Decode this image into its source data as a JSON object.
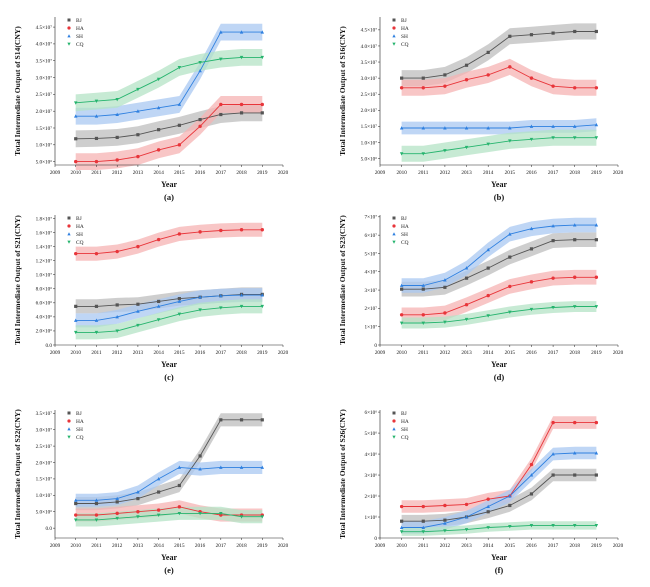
{
  "figure": {
    "colors": {
      "BJ": "#555555",
      "HA": "#e8353a",
      "SH": "#2f80e0",
      "CQ": "#26b46e"
    },
    "band_colors": {
      "BJ": "#bdbdbd",
      "HA": "#f6b3b3",
      "SH": "#a9c8f2",
      "CQ": "#b4e3c6"
    }
  },
  "chart_data": [
    {
      "type": "scatter",
      "caption": "(a)",
      "xlabel": "Year",
      "ylabel": "Total Intermediate Output of S14(CNY)",
      "xlim": [
        2009,
        2020
      ],
      "xticks": [
        "2009",
        "2010",
        "2011",
        "2012",
        "2013",
        "2014",
        "2015",
        "2016",
        "2017",
        "2018",
        "2019",
        "2020"
      ],
      "ylim": [
        4000000.0,
        48000000.0
      ],
      "yticks": [
        {
          "v": 5000000.0,
          "l": "5.0×10⁶"
        },
        {
          "v": 10000000.0,
          "l": "1.0×10⁷"
        },
        {
          "v": 15000000.0,
          "l": "1.5×10⁷"
        },
        {
          "v": 20000000.0,
          "l": "2.0×10⁷"
        },
        {
          "v": 25000000.0,
          "l": "2.5×10⁷"
        },
        {
          "v": 30000000.0,
          "l": "3.0×10⁷"
        },
        {
          "v": 35000000.0,
          "l": "3.5×10⁷"
        },
        {
          "v": 40000000.0,
          "l": "4.0×10⁷"
        },
        {
          "v": 45000000.0,
          "l": "4.5×10⁷"
        }
      ],
      "legend": "top-left",
      "x": [
        2010,
        2011,
        2012,
        2013,
        2014,
        2015,
        2016,
        2017,
        2018,
        2019
      ],
      "series": [
        {
          "name": "BJ",
          "marker": "square",
          "values": [
            11800000.0,
            11900000.0,
            12200000.0,
            13000000.0,
            14500000.0,
            15800000.0,
            17500000.0,
            19000000.0,
            19500000.0,
            19500000.0
          ],
          "band": 2500000.0
        },
        {
          "name": "HA",
          "marker": "circle",
          "values": [
            5000000.0,
            5000000.0,
            5500000.0,
            6500000.0,
            8500000.0,
            10000000.0,
            15500000.0,
            22000000.0,
            22000000.0,
            22000000.0
          ],
          "band": 2500000.0
        },
        {
          "name": "SH",
          "marker": "triangle-up",
          "values": [
            18500000.0,
            18500000.0,
            19000000.0,
            20000000.0,
            21000000.0,
            22000000.0,
            32000000.0,
            43500000.0,
            43500000.0,
            43500000.0
          ],
          "band": 2500000.0
        },
        {
          "name": "CQ",
          "marker": "triangle-down",
          "values": [
            22500000.0,
            23000000.0,
            23500000.0,
            26500000.0,
            29500000.0,
            33000000.0,
            34500000.0,
            35500000.0,
            36000000.0,
            36000000.0
          ],
          "band": 2500000.0
        }
      ]
    },
    {
      "type": "scatter",
      "caption": "(b)",
      "xlabel": "Year",
      "ylabel": "Total Intermediate Output of S16(CNY)",
      "xlim": [
        2009,
        2020
      ],
      "xticks": [
        "2009",
        "2010",
        "2011",
        "2012",
        "2013",
        "2014",
        "2015",
        "2016",
        "2017",
        "2018",
        "2019",
        "2020"
      ],
      "ylim": [
        3000000.0,
        49000000.0
      ],
      "yticks": [
        {
          "v": 5000000.0,
          "l": "5.0×10⁶"
        },
        {
          "v": 10000000.0,
          "l": "1.0×10⁷"
        },
        {
          "v": 15000000.0,
          "l": "1.5×10⁷"
        },
        {
          "v": 20000000.0,
          "l": "2.0×10⁷"
        },
        {
          "v": 25000000.0,
          "l": "2.5×10⁷"
        },
        {
          "v": 30000000.0,
          "l": "3.0×10⁷"
        },
        {
          "v": 35000000.0,
          "l": "3.5×10⁷"
        },
        {
          "v": 40000000.0,
          "l": "4.0×10⁷"
        },
        {
          "v": 45000000.0,
          "l": "4.5×10⁷"
        }
      ],
      "legend": "top-left",
      "x": [
        2010,
        2011,
        2012,
        2013,
        2014,
        2015,
        2016,
        2017,
        2018,
        2019
      ],
      "series": [
        {
          "name": "BJ",
          "marker": "square",
          "values": [
            30000000.0,
            30000000.0,
            31000000.0,
            34000000.0,
            38000000.0,
            43000000.0,
            43500000.0,
            44000000.0,
            44500000.0,
            44500000.0
          ],
          "band": 2500000.0
        },
        {
          "name": "HA",
          "marker": "circle",
          "values": [
            27000000.0,
            27000000.0,
            27500000.0,
            29500000.0,
            31000000.0,
            33500000.0,
            30000000.0,
            27500000.0,
            27000000.0,
            27000000.0
          ],
          "band": 2500000.0
        },
        {
          "name": "SH",
          "marker": "triangle-up",
          "values": [
            14500000.0,
            14500000.0,
            14500000.0,
            14500000.0,
            14500000.0,
            14500000.0,
            15000000.0,
            15000000.0,
            15000000.0,
            15500000.0
          ],
          "band": 2000000.0
        },
        {
          "name": "CQ",
          "marker": "triangle-down",
          "values": [
            6500000.0,
            6500000.0,
            7500000.0,
            8500000.0,
            9500000.0,
            10500000.0,
            11000000.0,
            11500000.0,
            11500000.0,
            11500000.0
          ],
          "band": 2500000.0
        }
      ]
    },
    {
      "type": "scatter",
      "caption": "(c)",
      "xlabel": "Year",
      "ylabel": "Total Intermediate Output of S21(CNY)",
      "xlim": [
        2009,
        2020
      ],
      "xticks": [
        "2009",
        "2010",
        "2011",
        "2012",
        "2013",
        "2014",
        "2015",
        "2016",
        "2017",
        "2018",
        "2019",
        "2020"
      ],
      "ylim": [
        0,
        18500000.0
      ],
      "yticks": [
        {
          "v": 0,
          "l": "0.0"
        },
        {
          "v": 2000000.0,
          "l": "2.0×10⁶"
        },
        {
          "v": 4000000.0,
          "l": "4.0×10⁶"
        },
        {
          "v": 6000000.0,
          "l": "6.0×10⁶"
        },
        {
          "v": 8000000.0,
          "l": "8.0×10⁶"
        },
        {
          "v": 10000000.0,
          "l": "1.0×10⁷"
        },
        {
          "v": 12000000.0,
          "l": "1.2×10⁷"
        },
        {
          "v": 14000000.0,
          "l": "1.4×10⁷"
        },
        {
          "v": 16000000.0,
          "l": "1.6×10⁷"
        },
        {
          "v": 18000000.0,
          "l": "1.8×10⁷"
        }
      ],
      "legend": "top-left",
      "x": [
        2010,
        2011,
        2012,
        2013,
        2014,
        2015,
        2016,
        2017,
        2018,
        2019
      ],
      "series": [
        {
          "name": "BJ",
          "marker": "square",
          "values": [
            5500000.0,
            5500000.0,
            5700000.0,
            5800000.0,
            6200000.0,
            6600000.0,
            6800000.0,
            7000000.0,
            7200000.0,
            7200000.0
          ],
          "band": 1000000.0
        },
        {
          "name": "HA",
          "marker": "circle",
          "values": [
            13000000.0,
            13000000.0,
            13300000.0,
            14000000.0,
            15000000.0,
            15800000.0,
            16100000.0,
            16300000.0,
            16400000.0,
            16400000.0
          ],
          "band": 1000000.0
        },
        {
          "name": "SH",
          "marker": "triangle-up",
          "values": [
            3500000.0,
            3500000.0,
            4000000.0,
            4800000.0,
            5500000.0,
            6200000.0,
            6800000.0,
            7000000.0,
            7100000.0,
            7100000.0
          ],
          "band": 1000000.0
        },
        {
          "name": "CQ",
          "marker": "triangle-down",
          "values": [
            1800000.0,
            1800000.0,
            2000000.0,
            2800000.0,
            3600000.0,
            4400000.0,
            5000000.0,
            5300000.0,
            5500000.0,
            5500000.0
          ],
          "band": 1000000.0
        }
      ]
    },
    {
      "type": "scatter",
      "caption": "(d)",
      "xlabel": "Year",
      "ylabel": "Total Intermediate Output of S23(CNY)",
      "xlim": [
        2009,
        2020
      ],
      "xticks": [
        "2009",
        "2010",
        "2011",
        "2012",
        "2013",
        "2014",
        "2015",
        "2016",
        "2017",
        "2018",
        "2019",
        "2020"
      ],
      "ylim": [
        0,
        71000000.0
      ],
      "yticks": [
        {
          "v": 0,
          "l": "0"
        },
        {
          "v": 10000000.0,
          "l": "1×10⁷"
        },
        {
          "v": 20000000.0,
          "l": "2×10⁷"
        },
        {
          "v": 30000000.0,
          "l": "3×10⁷"
        },
        {
          "v": 40000000.0,
          "l": "4×10⁷"
        },
        {
          "v": 50000000.0,
          "l": "5×10⁷"
        },
        {
          "v": 60000000.0,
          "l": "6×10⁷"
        },
        {
          "v": 70000000.0,
          "l": "7×10⁷"
        }
      ],
      "legend": "top-left",
      "x": [
        2010,
        2011,
        2012,
        2013,
        2014,
        2015,
        2016,
        2017,
        2018,
        2019
      ],
      "series": [
        {
          "name": "BJ",
          "marker": "square",
          "values": [
            30500000.0,
            30500000.0,
            31500000.0,
            36500000.0,
            42000000.0,
            48000000.0,
            52500000.0,
            57000000.0,
            57500000.0,
            57500000.0
          ],
          "band": 4000000.0
        },
        {
          "name": "HA",
          "marker": "circle",
          "values": [
            16500000.0,
            16500000.0,
            17500000.0,
            22000000.0,
            27000000.0,
            32000000.0,
            34500000.0,
            36500000.0,
            37000000.0,
            37000000.0
          ],
          "band": 4000000.0
        },
        {
          "name": "SH",
          "marker": "triangle-up",
          "values": [
            32500000.0,
            32500000.0,
            35500000.0,
            42000000.0,
            52000000.0,
            60500000.0,
            63500000.0,
            65000000.0,
            65500000.0,
            65500000.0
          ],
          "band": 4000000.0
        },
        {
          "name": "CQ",
          "marker": "triangle-down",
          "values": [
            12000000.0,
            12000000.0,
            12500000.0,
            14000000.0,
            16000000.0,
            18000000.0,
            19500000.0,
            20500000.0,
            21000000.0,
            21000000.0
          ],
          "band": 3000000.0
        }
      ]
    },
    {
      "type": "scatter",
      "caption": "(e)",
      "xlabel": "Year",
      "ylabel": "Total Intermediate Output of S22(CNY)",
      "xlim": [
        2009,
        2020
      ],
      "xticks": [
        "2009",
        "2010",
        "2011",
        "2012",
        "2013",
        "2014",
        "2015",
        "2016",
        "2017",
        "2018",
        "2019",
        "2020"
      ],
      "ylim": [
        -3000000.0,
        36000000.0
      ],
      "yticks": [
        {
          "v": 0,
          "l": "0.0"
        },
        {
          "v": 5000000.0,
          "l": "5.0×10⁶"
        },
        {
          "v": 10000000.0,
          "l": "1.0×10⁷"
        },
        {
          "v": 15000000.0,
          "l": "1.5×10⁷"
        },
        {
          "v": 20000000.0,
          "l": "2.0×10⁷"
        },
        {
          "v": 25000000.0,
          "l": "2.5×10⁷"
        },
        {
          "v": 30000000.0,
          "l": "3.0×10⁷"
        },
        {
          "v": 35000000.0,
          "l": "3.5×10⁷"
        }
      ],
      "legend": "top-left",
      "x": [
        2010,
        2011,
        2012,
        2013,
        2014,
        2015,
        2016,
        2017,
        2018,
        2019
      ],
      "series": [
        {
          "name": "BJ",
          "marker": "square",
          "values": [
            7500000.0,
            7500000.0,
            8000000.0,
            9000000.0,
            11000000.0,
            13000000.0,
            22000000.0,
            33000000.0,
            33000000.0,
            33000000.0
          ],
          "band": 2000000.0
        },
        {
          "name": "HA",
          "marker": "circle",
          "values": [
            4000000.0,
            4000000.0,
            4500000.0,
            5000000.0,
            5500000.0,
            6500000.0,
            5000000.0,
            4000000.0,
            4000000.0,
            4000000.0
          ],
          "band": 2000000.0
        },
        {
          "name": "SH",
          "marker": "triangle-up",
          "values": [
            8500000.0,
            8500000.0,
            9000000.0,
            11000000.0,
            15000000.0,
            18500000.0,
            18000000.0,
            18500000.0,
            18500000.0,
            18500000.0
          ],
          "band": 2000000.0
        },
        {
          "name": "CQ",
          "marker": "triangle-down",
          "values": [
            2500000.0,
            2500000.0,
            3000000.0,
            3500000.0,
            4000000.0,
            4500000.0,
            4500000.0,
            4500000.0,
            3500000.0,
            3500000.0
          ],
          "band": 2000000.0
        }
      ]
    },
    {
      "type": "scatter",
      "caption": "(f)",
      "xlabel": "Year",
      "ylabel": "Total Intermediate Output of S26(CNY)",
      "xlim": [
        2009,
        2020
      ],
      "xticks": [
        "2009",
        "2010",
        "2011",
        "2012",
        "2013",
        "2014",
        "2015",
        "2016",
        "2017",
        "2018",
        "2019",
        "2020"
      ],
      "ylim": [
        0,
        6100000.0
      ],
      "yticks": [
        {
          "v": 0,
          "l": "0"
        },
        {
          "v": 1000000.0,
          "l": "1×10⁶"
        },
        {
          "v": 2000000.0,
          "l": "2×10⁶"
        },
        {
          "v": 3000000.0,
          "l": "3×10⁶"
        },
        {
          "v": 4000000.0,
          "l": "4×10⁶"
        },
        {
          "v": 5000000.0,
          "l": "5×10⁶"
        },
        {
          "v": 6000000.0,
          "l": "6×10⁶"
        }
      ],
      "legend": "top-left",
      "x": [
        2010,
        2011,
        2012,
        2013,
        2014,
        2015,
        2016,
        2017,
        2018,
        2019
      ],
      "series": [
        {
          "name": "BJ",
          "marker": "square",
          "values": [
            800000.0,
            800000.0,
            850000.0,
            1000000.0,
            1250000.0,
            1550000.0,
            2100000.0,
            3000000.0,
            3000000.0,
            3000000.0
          ],
          "band": 300000.0
        },
        {
          "name": "HA",
          "marker": "circle",
          "values": [
            1500000.0,
            1500000.0,
            1550000.0,
            1600000.0,
            1850000.0,
            2000000.0,
            3500000.0,
            5500000.0,
            5500000.0,
            5500000.0
          ],
          "band": 300000.0
        },
        {
          "name": "SH",
          "marker": "triangle-up",
          "values": [
            500000.0,
            500000.0,
            700000.0,
            1000000.0,
            1500000.0,
            2000000.0,
            3000000.0,
            4000000.0,
            4050000.0,
            4050000.0
          ],
          "band": 300000.0
        },
        {
          "name": "CQ",
          "marker": "triangle-down",
          "values": [
            300000.0,
            300000.0,
            350000.0,
            400000.0,
            500000.0,
            550000.0,
            600000.0,
            600000.0,
            600000.0,
            600000.0
          ],
          "band": 200000.0
        }
      ]
    }
  ]
}
